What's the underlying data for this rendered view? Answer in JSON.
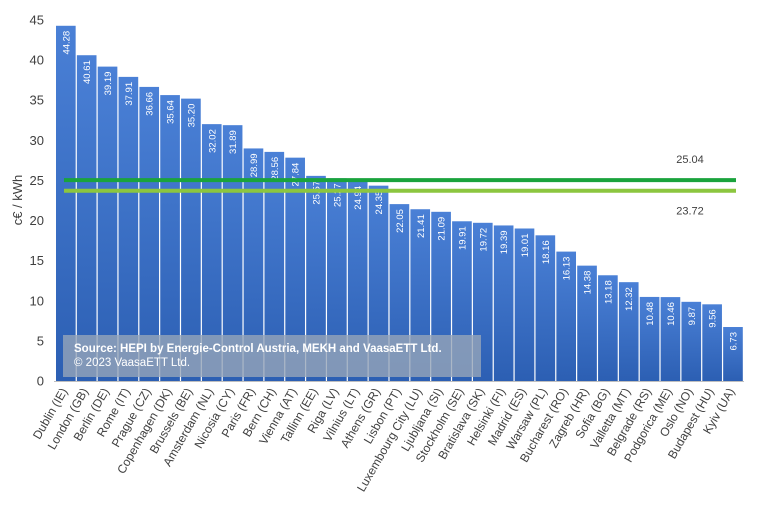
{
  "chart_data": {
    "type": "bar",
    "title": "",
    "xlabel": "",
    "ylabel": "c€ / kWh",
    "ylim": [
      0,
      45
    ],
    "yticks": [
      0,
      5,
      10,
      15,
      20,
      25,
      30,
      35,
      40,
      45
    ],
    "grid": false,
    "categories": [
      "Dublin (IE)",
      "London (GB)",
      "Berlin (DE)",
      "Rome (IT)",
      "Prague (CZ)",
      "Copenhagen (DK)",
      "Brussels (BE)",
      "Amsterdam (NL)",
      "Nicosia (CY)",
      "Paris (FR)",
      "Bern (CH)",
      "Vienna (AT)",
      "Tallinn (EE)",
      "Riga (LV)",
      "Vilnius (LT)",
      "Athens (GR)",
      "Lisbon (PT)",
      "Luxembourg City (LU)",
      "Ljubljana (SI)",
      "Stockholm (SE)",
      "Bratislava (SK)",
      "Helsinki (FI)",
      "Madrid (ES)",
      "Warsaw (PL)",
      "Bucharest (RO)",
      "Zagreb (HR)",
      "Sofia (BG)",
      "Valletta (MT)",
      "Belgrade (RS)",
      "Podgorica (ME)",
      "Oslo (NO)",
      "Budapest (HU)",
      "Kyiv (UA)"
    ],
    "values": [
      44.28,
      40.61,
      39.19,
      37.91,
      36.66,
      35.64,
      35.2,
      32.02,
      31.89,
      28.99,
      28.56,
      27.84,
      25.57,
      25.27,
      24.94,
      24.35,
      22.05,
      21.41,
      21.09,
      19.91,
      19.72,
      19.39,
      19.01,
      18.16,
      16.13,
      14.38,
      13.18,
      12.32,
      10.48,
      10.46,
      9.87,
      9.56,
      6.73
    ],
    "value_labels": [
      "44.28",
      "40.61",
      "39.19",
      "37.91",
      "36.66",
      "35.64",
      "35.20",
      "32.02",
      "31.89",
      "28.99",
      "28.56",
      "27.84",
      "25.57",
      "25.27",
      "24.94",
      "24.35",
      "22.05",
      "21.41",
      "21.09",
      "19.91",
      "19.72",
      "19.39",
      "19.01",
      "18.16",
      "16.13",
      "14.38",
      "13.18",
      "12.32",
      "10.48",
      "10.46",
      "9.87",
      "9.56",
      "6.73"
    ],
    "reference_lines": [
      {
        "value": 25.04,
        "label": "25.04",
        "color": "#1aa33c"
      },
      {
        "value": 23.72,
        "label": "23.72",
        "color": "#8cc63f"
      }
    ],
    "bar_color": "#3d72c9"
  },
  "source": {
    "line1": "Source: HEPI by Energie-Control Austria, MEKH and VaasaETT Ltd.",
    "line2": "© 2023 VaasaETT Ltd."
  }
}
